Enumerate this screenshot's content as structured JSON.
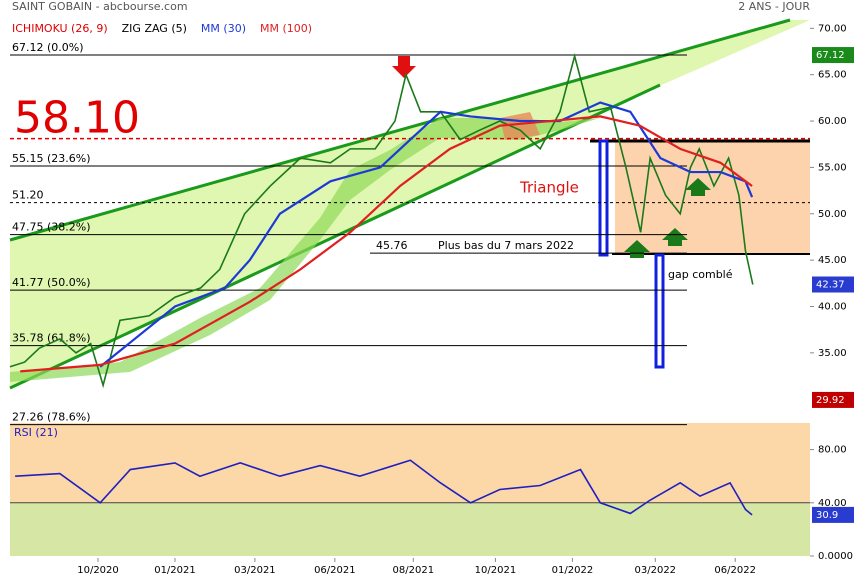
{
  "header": {
    "title": "SAINT GOBAIN - abcbourse.com",
    "period": "2 ANS - JOUR"
  },
  "chart_data": [
    {
      "type": "line",
      "indicators": [
        {
          "name": "ICHIMOKU (26, 9)",
          "color": "#e00000"
        },
        {
          "name": "ZIG ZAG (5)",
          "color": "#000000"
        }
      ],
      "xlim": [
        0,
        109.1
      ],
      "xticks": [
        {
          "value": 12,
          "label": "10/2020"
        },
        {
          "value": 22.5,
          "label": "01/2021"
        },
        {
          "value": 33.4,
          "label": "03/2021"
        },
        {
          "value": 44.3,
          "label": "06/2021"
        },
        {
          "value": 55,
          "label": "08/2021"
        },
        {
          "value": 66.2,
          "label": "10/2021"
        },
        {
          "value": 76.7,
          "label": "01/2022"
        },
        {
          "value": 88,
          "label": "03/2022"
        },
        {
          "value": 98.9,
          "label": "06/2022"
        }
      ],
      "ylim": [
        27,
        70.9
      ],
      "yticks": [
        {
          "value": 70,
          "label": "70.00"
        },
        {
          "value": 65,
          "label": "65.00"
        },
        {
          "value": 60,
          "label": "60.00"
        },
        {
          "value": 55,
          "label": "55.00"
        },
        {
          "value": 50,
          "label": "50.00"
        },
        {
          "value": 45,
          "label": "45.00"
        },
        {
          "value": 40,
          "label": "40.00"
        },
        {
          "value": 35,
          "label": "35.00"
        }
      ],
      "series": [
        {
          "color": "#1a7a1a",
          "x": [
            0,
            2,
            4,
            6.8,
            9,
            11,
            12.7,
            15,
            19,
            22.5,
            26,
            28.6,
            32,
            35.5,
            39.6,
            43.7,
            46.4,
            49.8,
            52.5,
            54,
            56,
            58.7,
            61.4,
            64,
            66.8,
            69.6,
            72.3,
            75,
            77,
            79,
            81.9,
            84,
            86,
            87.3,
            89.4,
            91.4,
            92.8,
            94,
            96,
            98,
            99.4,
            100.3,
            101.3
          ],
          "values": [
            33.5,
            34,
            35.5,
            36.5,
            35,
            36,
            31.5,
            38.5,
            39,
            41,
            42,
            44,
            50,
            53,
            56,
            55.5,
            57,
            57,
            60,
            65,
            61,
            61,
            58,
            59,
            60,
            59,
            57,
            61,
            67,
            61,
            61.5,
            55,
            48,
            56,
            52,
            50,
            55,
            57,
            53,
            56,
            52,
            46,
            42.37
          ]
        },
        {
          "name": "MM (30)",
          "color": "#1e3ad6",
          "x": [
            12.3,
            22.5,
            29.3,
            32.7,
            36.8,
            43.7,
            50.5,
            54.6,
            58.7,
            62.8,
            69.6,
            75,
            80.5,
            84.6,
            88.7,
            92.8,
            96.9,
            100.3,
            101.2
          ],
          "values": [
            33.5,
            40,
            42,
            45,
            50,
            53.5,
            55,
            58,
            61,
            60.5,
            60,
            60,
            62,
            61,
            56,
            54.5,
            54.5,
            53.5,
            51.8
          ]
        },
        {
          "name": "MM (100)",
          "color": "#e02020",
          "x": [
            1.4,
            12.3,
            22.5,
            32.7,
            39.6,
            46.4,
            53.2,
            60,
            66.8,
            73.7,
            80.5,
            85.9,
            91.4,
            96.9,
            101.2
          ],
          "values": [
            33,
            33.7,
            36,
            40.5,
            44,
            48,
            53,
            57,
            59.5,
            60,
            60.5,
            59.5,
            57,
            55.5,
            53
          ]
        }
      ],
      "levels": [
        {
          "value": 67.12,
          "label": "67.12 (0.0%)"
        },
        {
          "value": 55.15,
          "label": "55.15 (23.6%)"
        },
        {
          "value": 51.2,
          "label": "51.20",
          "style": "dashed"
        },
        {
          "value": 47.75,
          "label": "47.75 (38.2%)"
        },
        {
          "value": 45.76,
          "label": "45.76",
          "note": "Plus bas du 7 mars 2022"
        },
        {
          "value": 41.77,
          "label": "41.77 (50.0%)"
        },
        {
          "value": 35.78,
          "label": "35.78 (61.8%)"
        },
        {
          "value": 27.26,
          "label": "27.26 (78.6%)"
        }
      ],
      "price_line": {
        "value": 58.1,
        "label": "58.10",
        "color": "#e00000"
      },
      "price_tags": [
        {
          "value": 67.12,
          "color": "#1a8a1a"
        },
        {
          "value": 42.37,
          "color": "#2a3cd0"
        },
        {
          "value": 29.92,
          "color": "#c00000"
        }
      ],
      "annotations": [
        "Triangle",
        "gap comblé"
      ]
    },
    {
      "type": "line",
      "title": "RSI (21)",
      "xlim": [
        0,
        109.1
      ],
      "ylim": [
        0,
        100
      ],
      "yticks": [
        {
          "value": 80,
          "label": "80.00"
        },
        {
          "value": 40,
          "label": "40.00"
        },
        {
          "value": 0,
          "label": "0.0000"
        }
      ],
      "threshold": 40,
      "series": [
        {
          "color": "#2020c0",
          "x": [
            0.7,
            6.8,
            12.3,
            16.4,
            22.5,
            25.9,
            31.4,
            36.8,
            42.3,
            47.7,
            54.6,
            58.7,
            62.8,
            66.8,
            72.3,
            77.8,
            80.5,
            84.6,
            87.3,
            91.4,
            94.1,
            98.2,
            100.3,
            101.2
          ],
          "values": [
            60,
            62,
            40,
            65,
            70,
            60,
            70,
            60,
            68,
            60,
            72,
            55,
            40,
            50,
            53,
            65,
            40,
            32,
            42,
            55,
            45,
            55,
            35,
            30.9
          ]
        }
      ],
      "price_tags": [
        {
          "value": 30.9,
          "color": "#2a3cd0"
        }
      ]
    }
  ]
}
